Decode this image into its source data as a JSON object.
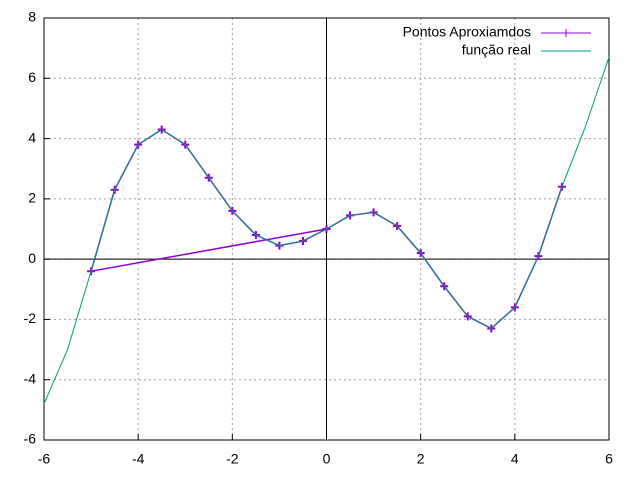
{
  "chart_data": {
    "type": "line",
    "xlim": [
      -6,
      6
    ],
    "ylim": [
      -6,
      8
    ],
    "xticks": [
      -6,
      -4,
      -2,
      0,
      2,
      4,
      6
    ],
    "yticks": [
      -6,
      -4,
      -2,
      0,
      2,
      4,
      6,
      8
    ],
    "grid": true,
    "zeroaxis": true,
    "legend": "top-right",
    "series": [
      {
        "name": "Pontos Aproxiamdos",
        "color": "#9400d3",
        "markers": true,
        "x": [
          0,
          -5,
          -4.5,
          -4,
          -3.5,
          -3,
          -2.5,
          -2,
          -1.5,
          -1,
          -0.5,
          0,
          0.5,
          1,
          1.5,
          2,
          2.5,
          3,
          3.5,
          4,
          4.5,
          5
        ],
        "values": [
          1.0,
          -0.4,
          2.3,
          3.8,
          4.3,
          3.8,
          2.7,
          1.6,
          0.8,
          0.45,
          0.6,
          1.0,
          1.45,
          1.55,
          1.1,
          0.2,
          -0.9,
          -1.9,
          -2.3,
          -1.6,
          0.1,
          2.4
        ]
      },
      {
        "name": "função real",
        "color": "#009e73",
        "markers": false,
        "x": [
          -6,
          -5.5,
          -5,
          -4.5,
          -4,
          -3.5,
          -3,
          -2.5,
          -2,
          -1.5,
          -1,
          -0.5,
          0,
          0.5,
          1,
          1.5,
          2,
          2.5,
          3,
          3.5,
          4,
          4.5,
          5,
          5.5,
          6
        ],
        "values": [
          -4.8,
          -3.0,
          -0.4,
          2.3,
          3.8,
          4.3,
          3.8,
          2.7,
          1.6,
          0.8,
          0.45,
          0.6,
          1.0,
          1.45,
          1.55,
          1.1,
          0.2,
          -0.9,
          -1.9,
          -2.3,
          -1.6,
          0.1,
          2.4,
          4.4,
          6.7
        ]
      }
    ]
  }
}
